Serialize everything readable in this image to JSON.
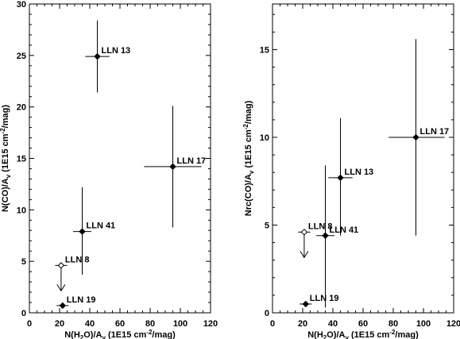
{
  "chart_data": [
    {
      "type": "scatter",
      "xlabel_base": "N(H",
      "xlabel_sub": "2",
      "xlabel_mid": "O)/A",
      "xlabel_sub2": "v",
      "xlabel_unit_a": " (1E15 cm",
      "xlabel_sup": "-2",
      "xlabel_unit_b": "/mag)",
      "ylabel_base": "N(CO)/A",
      "ylabel_sub": "v",
      "ylabel_unit_a": " (1E15 cm",
      "ylabel_sup": "-2",
      "ylabel_unit_b": "/mag)",
      "xlim": [
        0,
        120
      ],
      "ylim": [
        0,
        30
      ],
      "xticks": [
        0,
        20,
        40,
        60,
        80,
        100,
        120
      ],
      "yticks": [
        0,
        5,
        10,
        15,
        20,
        25,
        30
      ],
      "points": [
        {
          "label": "LLN 13",
          "x": 45,
          "y": 24.9,
          "xerr": [
            37,
            53
          ],
          "yerr": [
            21.4,
            28.4
          ]
        },
        {
          "label": "LLN 17",
          "x": 95,
          "y": 14.2,
          "xerr": [
            76,
            114
          ],
          "yerr": [
            8.3,
            20.1
          ]
        },
        {
          "label": "LLN 41",
          "x": 35,
          "y": 7.9,
          "xerr": [
            29,
            41
          ],
          "yerr": [
            3.7,
            12.2
          ]
        },
        {
          "label": "LLN 8",
          "x": 21,
          "y": 4.6,
          "xerr": [
            17,
            25
          ],
          "yerr": null,
          "upper_limit": true
        },
        {
          "label": "LLN 19",
          "x": 22,
          "y": 0.7,
          "xerr": [
            18,
            26
          ],
          "yerr": null
        }
      ]
    },
    {
      "type": "scatter",
      "xlabel_base": "N(H",
      "xlabel_sub": "2",
      "xlabel_mid": "O)/A",
      "xlabel_sub2": "v",
      "xlabel_unit_a": " (1E15 cm",
      "xlabel_sup": "-2",
      "xlabel_unit_b": "/mag)",
      "ylabel_base": "Nrc(CO)/A",
      "ylabel_sub": "v",
      "ylabel_unit_a": " (1E15 cm",
      "ylabel_sup": "-2",
      "ylabel_unit_b": "/mag)",
      "xlim": [
        0,
        120
      ],
      "ylim": [
        0,
        17.6
      ],
      "xticks": [
        0,
        20,
        40,
        60,
        80,
        100,
        120
      ],
      "yticks": [
        0,
        5,
        10,
        15
      ],
      "points": [
        {
          "label": "LLN 17",
          "x": 95,
          "y": 10.0,
          "xerr": [
            77,
            114
          ],
          "yerr": [
            4.4,
            15.6
          ]
        },
        {
          "label": "LLN 13",
          "x": 45,
          "y": 7.7,
          "xerr": [
            37,
            53
          ],
          "yerr": [
            4.4,
            11.1
          ]
        },
        {
          "label": "LLN 8",
          "x": 21,
          "y": 4.6,
          "xerr": [
            17,
            25
          ],
          "yerr": null,
          "upper_limit": true
        },
        {
          "label": "LLN 41",
          "x": 35,
          "y": 4.4,
          "xerr": [
            29,
            41
          ],
          "yerr": [
            0.3,
            8.4
          ]
        },
        {
          "label": "LLN 19",
          "x": 22,
          "y": 0.5,
          "xerr": [
            18,
            26
          ],
          "yerr": null
        }
      ]
    }
  ]
}
